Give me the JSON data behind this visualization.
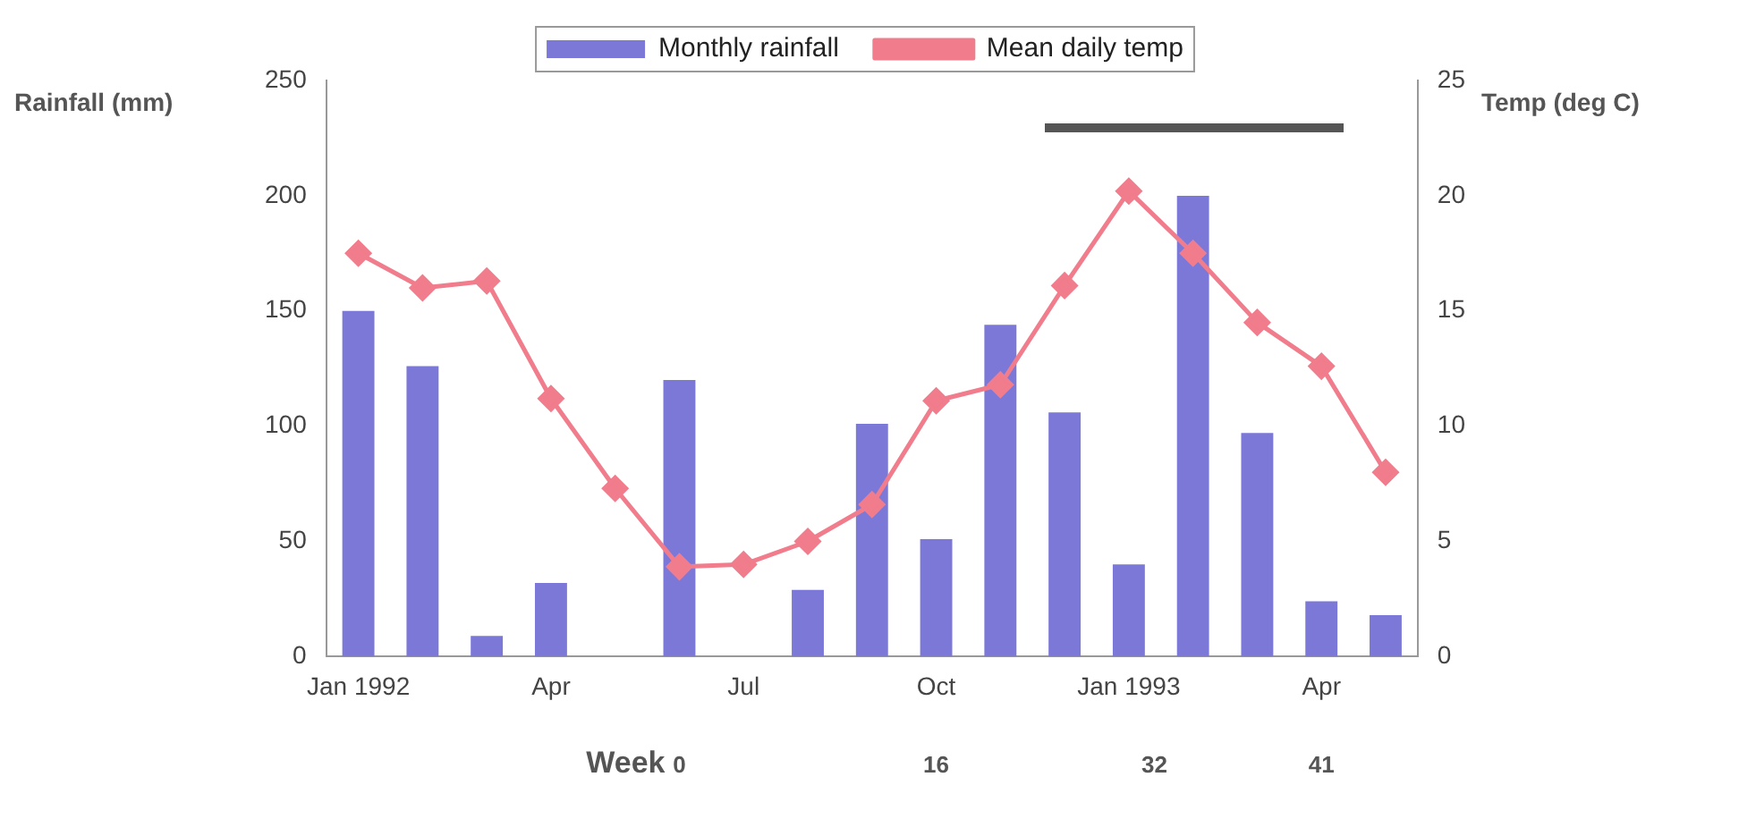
{
  "chart_data": {
    "type": "bar",
    "categories": [
      "Jan 1992",
      null,
      null,
      "Apr",
      null,
      null,
      "Jul",
      null,
      null,
      "Oct",
      null,
      null,
      "Jan 1993",
      null,
      null,
      "Apr",
      null
    ],
    "series": [
      {
        "name": "Monthly rainfall",
        "color": "#7b78d8",
        "values": [
          150,
          126,
          9,
          32,
          0,
          120,
          0,
          29,
          101,
          51,
          144,
          106,
          40,
          200,
          97,
          24,
          18
        ]
      },
      {
        "name": "Mean daily temp",
        "type": "line",
        "axis": "y2",
        "color": "#f07c8c",
        "marker": "diamond",
        "values": [
          17.5,
          16,
          16.3,
          11.2,
          7.3,
          3.9,
          4,
          5,
          6.6,
          11.1,
          11.8,
          16.1,
          20.2,
          17.5,
          14.5,
          12.6,
          8
        ]
      }
    ],
    "ylabel": "Rainfall (mm)",
    "y2label": "Temp (deg C)",
    "ylim": [
      0,
      250
    ],
    "yticks": [
      0,
      50,
      100,
      150,
      200,
      250
    ],
    "y2lim": [
      0,
      25
    ],
    "y2ticks": [
      0,
      5,
      10,
      15,
      20,
      25
    ],
    "annotations": [
      "Week",
      "0",
      "16",
      "32",
      "41"
    ],
    "grid": false,
    "legend": "top"
  }
}
